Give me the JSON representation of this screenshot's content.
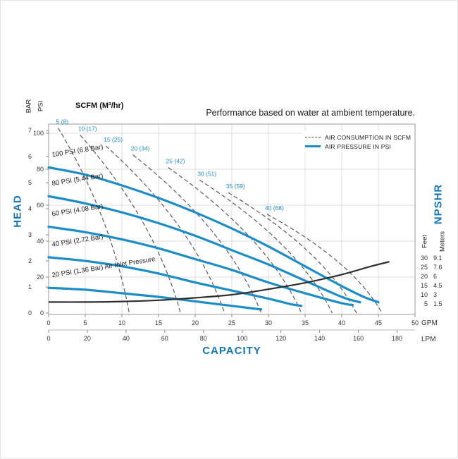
{
  "note": "Performance based on water at ambient temperature.",
  "scfm_header": "SCFM (M³/hr)",
  "legend": {
    "air_consumption": "AIR CONSUMPTION IN SCFM",
    "air_pressure": "AIR PRESSURE IN PSI"
  },
  "axes": {
    "left_title": "HEAD",
    "left_unit_bar": "BAR",
    "left_unit_psi": "PSI",
    "bottom_title": "CAPACITY",
    "bottom_unit_gpm": "GPM",
    "bottom_unit_lpm": "LPM",
    "right_title": "NPSHR",
    "right_unit_feet": "Feet",
    "right_unit_meters": "Meters"
  },
  "colors": {
    "blue": "#1d8dc8",
    "title_blue": "#1576b5",
    "dashed": "#5a5a5a",
    "npshr": "#2f2f2f",
    "grid": "#dcdcdc"
  },
  "chart_data": {
    "type": "line",
    "title": "Performance based on water at ambient temperature.",
    "xlabel": "CAPACITY",
    "ylabel_left": "HEAD",
    "ylabel_right": "NPSHR",
    "xlim_gpm": [
      0,
      50
    ],
    "ylim_psi": [
      0,
      105
    ],
    "x_gpm_ticks": [
      0,
      5,
      10,
      15,
      20,
      25,
      30,
      35,
      40,
      45,
      50
    ],
    "x_lpm_ticks": [
      0,
      20,
      40,
      60,
      80,
      100,
      120,
      140,
      160,
      180
    ],
    "bar_ticks": [
      0,
      1,
      2,
      3,
      4,
      5,
      6,
      7
    ],
    "psi_ticks": [
      0,
      20,
      40,
      60,
      80,
      100
    ],
    "feet_ticks": [
      30,
      25,
      20,
      15,
      10,
      5
    ],
    "meters_ticks": [
      "9.1",
      "7.6",
      "6",
      "4.5",
      "3",
      "1.5"
    ],
    "air_pressure_curves": [
      {
        "label": "100 PSI (6.8 Bar)",
        "points": [
          [
            0,
            81
          ],
          [
            5,
            77
          ],
          [
            10,
            71
          ],
          [
            15,
            64
          ],
          [
            20,
            56
          ],
          [
            25,
            47
          ],
          [
            30,
            37
          ],
          [
            35,
            26
          ],
          [
            40,
            15
          ],
          [
            43,
            9
          ],
          [
            45,
            6
          ]
        ]
      },
      {
        "label": "80 PSI (5.44 Bar)",
        "points": [
          [
            0,
            65
          ],
          [
            5,
            61
          ],
          [
            10,
            56
          ],
          [
            15,
            50
          ],
          [
            20,
            43
          ],
          [
            25,
            35
          ],
          [
            30,
            27
          ],
          [
            35,
            18
          ],
          [
            40,
            9
          ],
          [
            42.5,
            6
          ]
        ]
      },
      {
        "label": "60 PSI (4.08 Bar)",
        "points": [
          [
            0,
            48
          ],
          [
            5,
            45
          ],
          [
            10,
            41
          ],
          [
            15,
            36
          ],
          [
            20,
            30
          ],
          [
            25,
            24
          ],
          [
            30,
            17
          ],
          [
            35,
            11
          ],
          [
            40,
            5.5
          ],
          [
            41.5,
            4.5
          ]
        ]
      },
      {
        "label": "40 PSI (2.72 Bar)",
        "points": [
          [
            0,
            31
          ],
          [
            5,
            29
          ],
          [
            10,
            26
          ],
          [
            15,
            22
          ],
          [
            20,
            17
          ],
          [
            25,
            12.5
          ],
          [
            30,
            8
          ],
          [
            33,
            5
          ],
          [
            34.5,
            4
          ]
        ]
      },
      {
        "label": "20 PSI (1.36 Bar) Air Inlet Pressure",
        "points": [
          [
            0,
            14
          ],
          [
            5,
            13
          ],
          [
            10,
            11
          ],
          [
            15,
            9
          ],
          [
            20,
            6.5
          ],
          [
            25,
            4
          ],
          [
            28,
            2.5
          ],
          [
            29,
            2
          ]
        ]
      }
    ],
    "air_consumption_curves": [
      {
        "label": "5 (8)",
        "start": [
          1.3,
          103
        ],
        "end": [
          11,
          0
        ]
      },
      {
        "label": "10 (17)",
        "start": [
          4.3,
          99
        ],
        "end": [
          18,
          0
        ]
      },
      {
        "label": "15 (25)",
        "start": [
          7.8,
          93
        ],
        "end": [
          24,
          0
        ]
      },
      {
        "label": "20 (34)",
        "start": [
          11.5,
          88
        ],
        "end": [
          29,
          0
        ]
      },
      {
        "label": "25 (42)",
        "start": [
          16.3,
          81
        ],
        "end": [
          34.5,
          0
        ]
      },
      {
        "label": "30 (51)",
        "start": [
          20.6,
          74
        ],
        "end": [
          38.7,
          0
        ]
      },
      {
        "label": "35 (59)",
        "start": [
          24.5,
          67
        ],
        "end": [
          42,
          0
        ]
      },
      {
        "label": "40 (68)",
        "start": [
          29.8,
          55
        ],
        "end": [
          45.5,
          0
        ]
      }
    ],
    "npshr_curve_feet": [
      [
        0,
        6
      ],
      [
        5,
        6
      ],
      [
        10,
        6.3
      ],
      [
        15,
        7
      ],
      [
        20,
        8.3
      ],
      [
        25,
        10
      ],
      [
        30,
        13
      ],
      [
        35,
        16.5
      ],
      [
        40,
        21
      ],
      [
        44,
        25.5
      ],
      [
        46.5,
        28
      ]
    ]
  }
}
